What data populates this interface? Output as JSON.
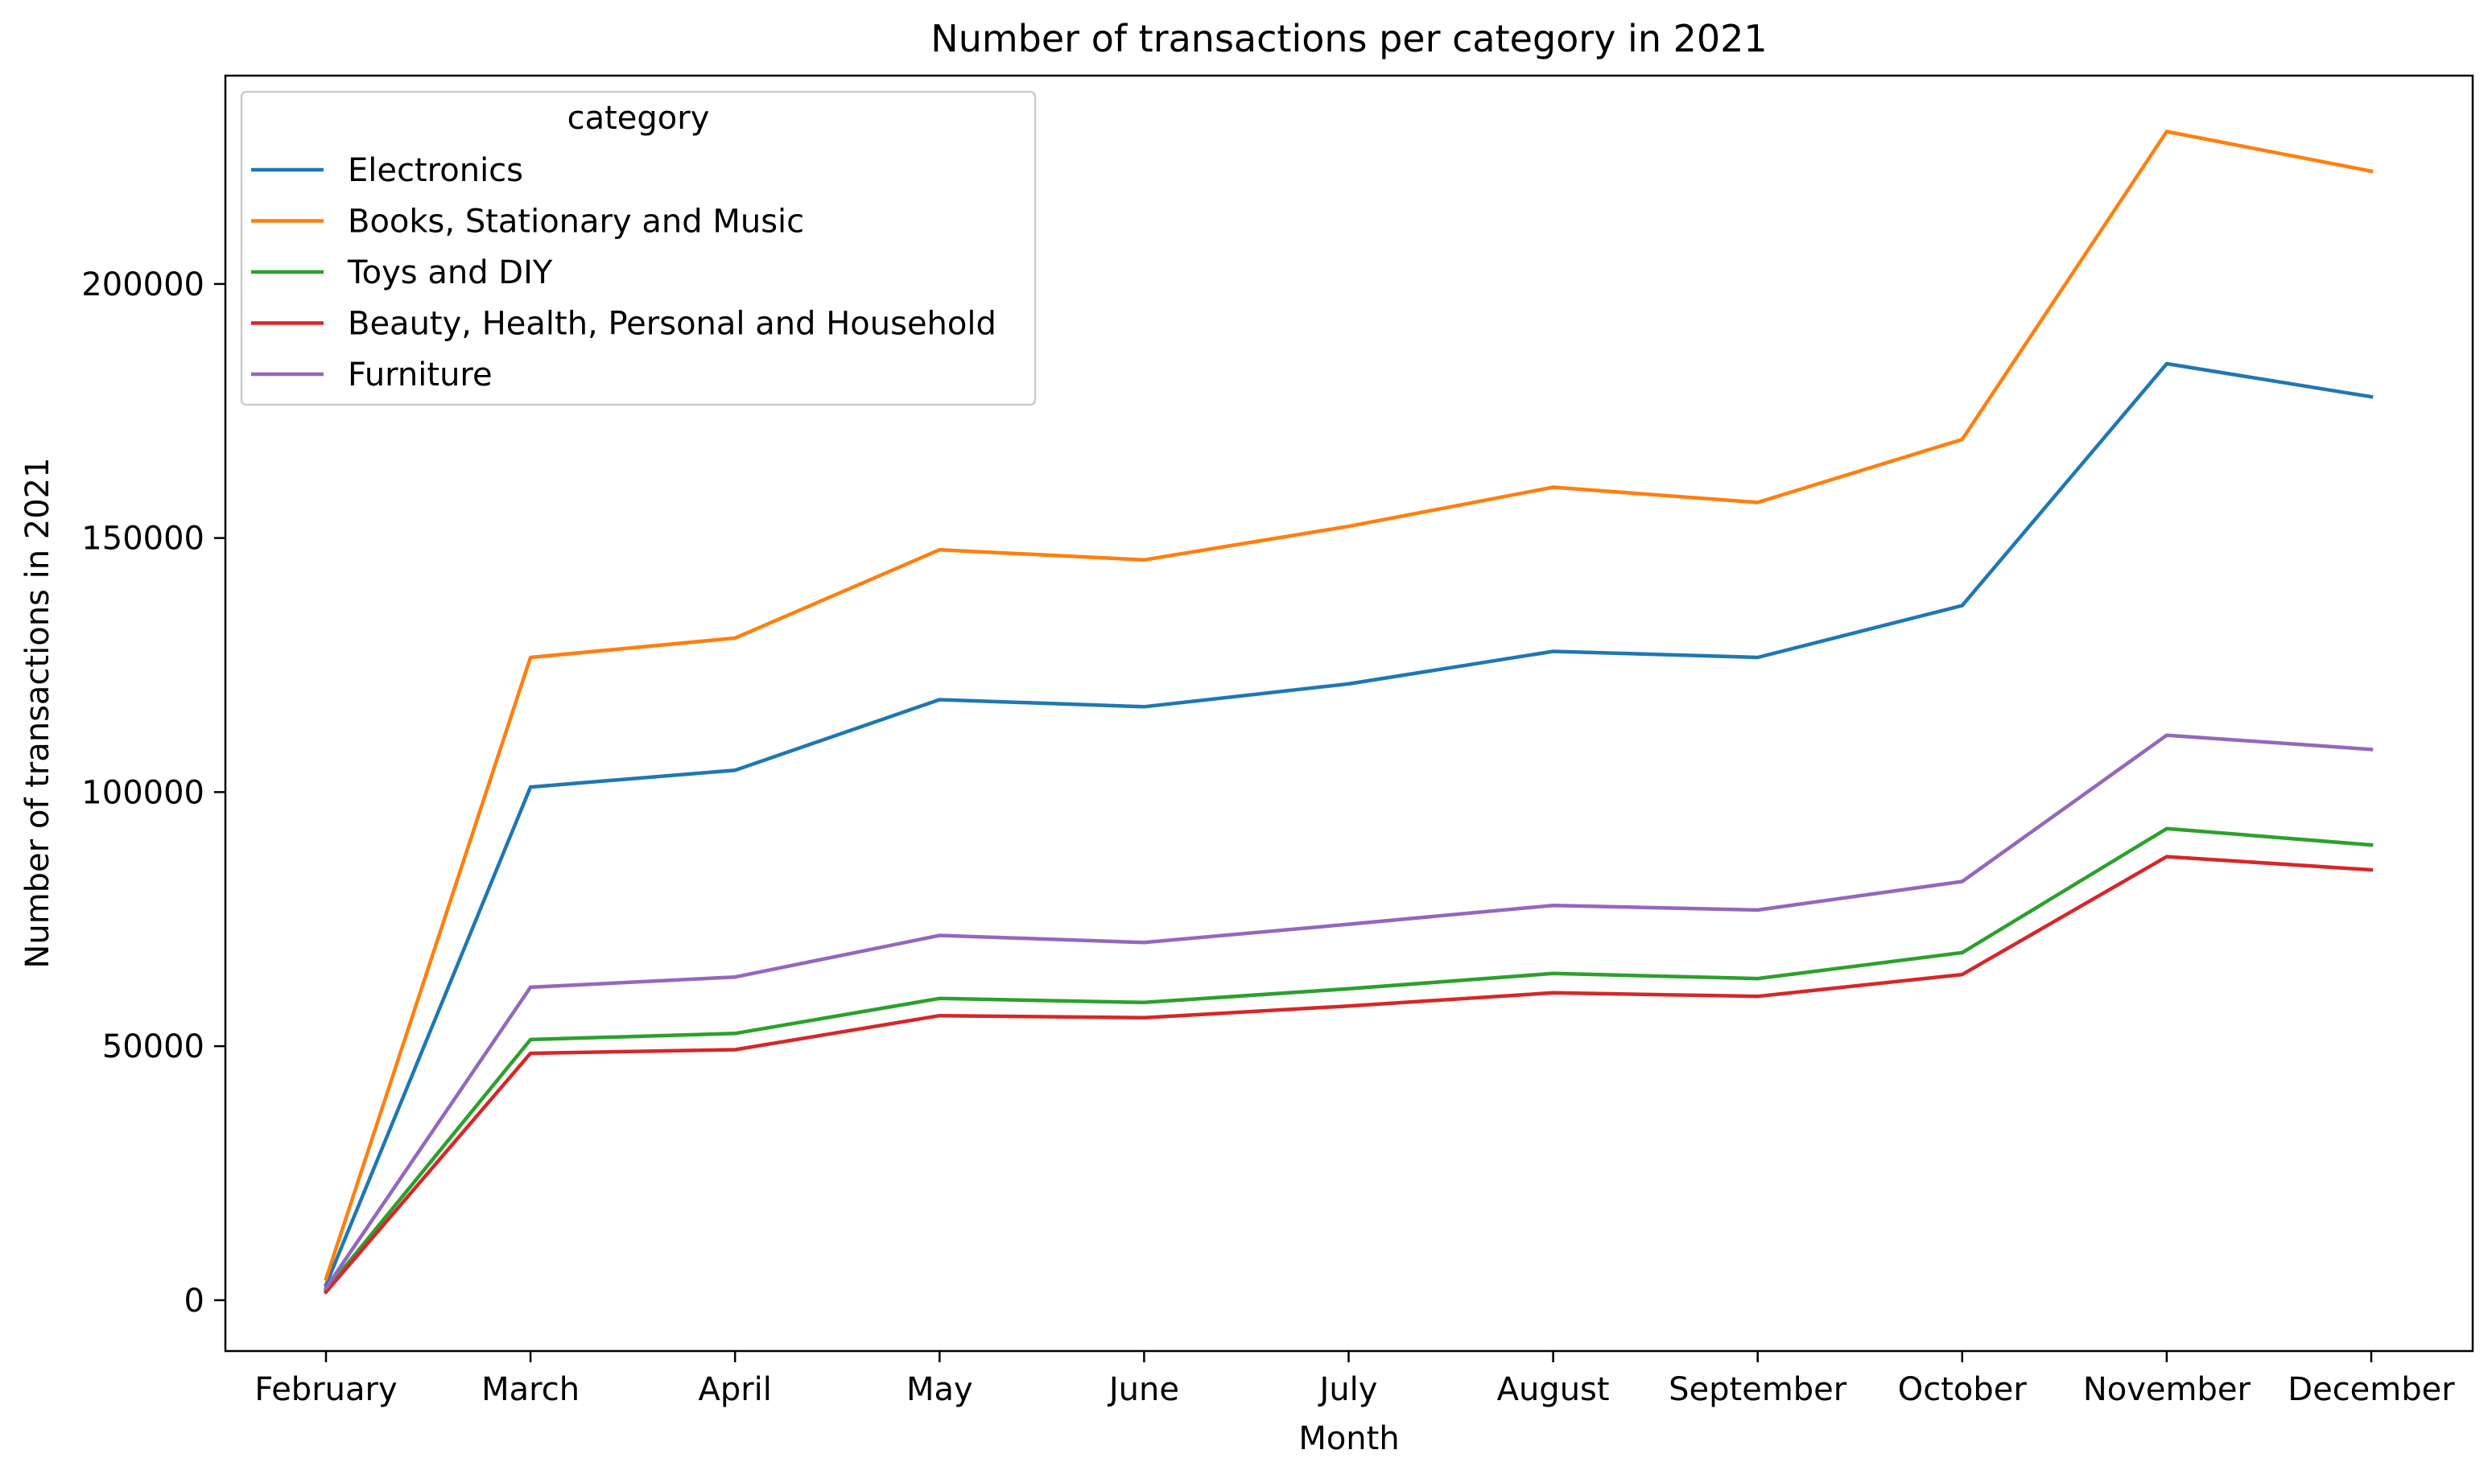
{
  "chart_data": {
    "type": "line",
    "title": "Number of transactions per category in 2021",
    "xlabel": "Month",
    "ylabel": "Number of transactions in 2021",
    "categories": [
      "February",
      "March",
      "April",
      "May",
      "June",
      "July",
      "August",
      "September",
      "October",
      "November",
      "December"
    ],
    "ylim": [
      -10000,
      241000
    ],
    "yticks": [
      0,
      50000,
      100000,
      150000,
      200000
    ],
    "yticklabels": [
      "0",
      "50000",
      "100000",
      "150000",
      "200000"
    ],
    "grid": false,
    "legend": {
      "title": "category",
      "placement": "upper-left"
    },
    "series": [
      {
        "name": "Electronics",
        "color": "#1f77b4",
        "values": [
          3000,
          101000,
          104300,
          118200,
          116800,
          121300,
          127700,
          126500,
          136700,
          184300,
          177800
        ]
      },
      {
        "name": "Books, Stationary and Music",
        "color": "#ff7f0e",
        "values": [
          4200,
          126500,
          130300,
          147700,
          145700,
          152300,
          160000,
          157000,
          169400,
          230000,
          222200
        ]
      },
      {
        "name": "Toys and DIY",
        "color": "#2ca02c",
        "values": [
          2000,
          51300,
          52500,
          59400,
          58600,
          61300,
          64300,
          63300,
          68400,
          92800,
          89600
        ]
      },
      {
        "name": "Beauty, Health, Personal and Household",
        "color": "#d62728",
        "values": [
          1600,
          48600,
          49300,
          56000,
          55600,
          57900,
          60500,
          59800,
          64100,
          87300,
          84700
        ]
      },
      {
        "name": "Furniture",
        "color": "#9467bd",
        "values": [
          2400,
          61600,
          63600,
          71800,
          70400,
          74000,
          77700,
          76800,
          82400,
          111200,
          108400
        ]
      }
    ]
  }
}
